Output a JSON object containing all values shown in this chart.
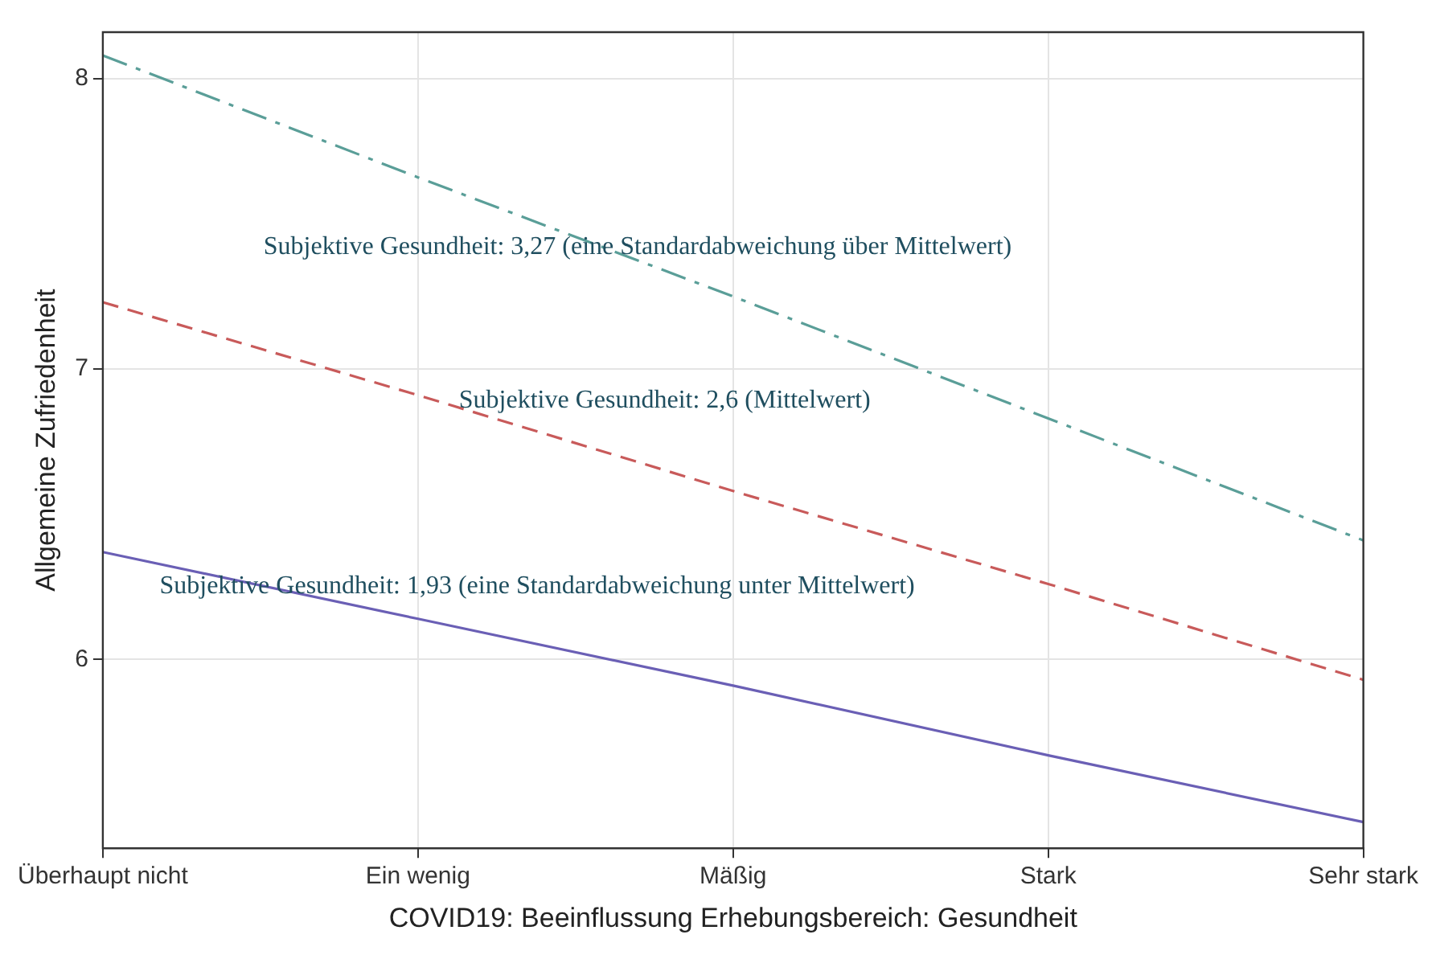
{
  "chart_data": {
    "type": "line",
    "xlabel": "COVID19: Beeinflussung Erhebungsbereich: Gesundheit",
    "ylabel": "Allgemeine Zufriedenheit",
    "categories": [
      "Überhaupt nicht",
      "Ein wenig",
      "Mäßig",
      "Stark",
      "Sehr stark"
    ],
    "series": [
      {
        "name": "Subjektive Gesundheit: 1,93 (eine Standardabweichung unter Mittelwert)",
        "color": "#6a5fb5",
        "line_style": "solid",
        "values": [
          6.37,
          6.14,
          5.91,
          5.67,
          5.44
        ]
      },
      {
        "name": "Subjektive Gesundheit: 2,6 (Mittelwert)",
        "color": "#c85a5a",
        "line_style": "dashed",
        "values": [
          7.23,
          6.91,
          6.58,
          6.26,
          5.93
        ]
      },
      {
        "name": "Subjektive Gesundheit: 3,27 (eine Standardabweichung über Mittelwert)",
        "color": "#5a9e98",
        "line_style": "dashdot",
        "values": [
          8.08,
          7.66,
          7.25,
          6.83,
          6.41
        ]
      }
    ],
    "ylim": [
      5.35,
      8.16
    ],
    "yticks": [
      6,
      7,
      8
    ],
    "grid": true,
    "legend": false,
    "marker": "none"
  }
}
